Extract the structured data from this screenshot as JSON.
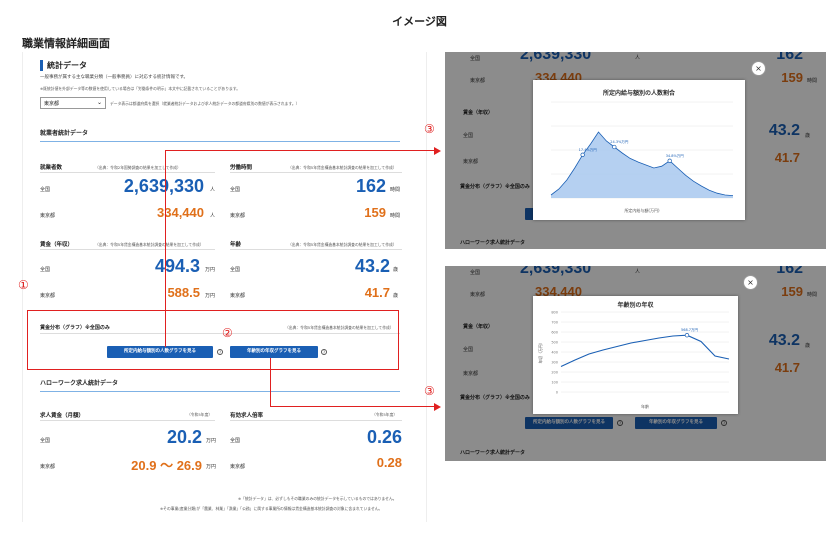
{
  "doc_title": "イメージ図",
  "page_heading": "職業情報詳細画面",
  "main": {
    "section_title": "統計データ",
    "intro": "一般事務が属する主な職業分類（一般事務員）に対応する統計情報です。",
    "note": "※既統計値を外部データ等の数値を使用している場合は「労働条件の明示」本文中に記載されていることがあります。",
    "pref_select": "東京都",
    "pref_note": "データ表示は都道府県を選択（就業者統計データおよび求人統計データの都道府県別の数値が表示されます。）",
    "employment_heading": "就業者統計データ",
    "workers": {
      "label": "就業者数",
      "source": "（出典：令和2年国勢調査の結果を加工して作成）",
      "nation_label": "全国",
      "nation_value": "2,639,330",
      "nation_unit": "人",
      "pref_label": "東京都",
      "pref_value": "334,440",
      "pref_unit": "人"
    },
    "hours": {
      "label": "労働時間",
      "source": "（出典：令和5年賃金構造基本統計調査の結果を加工して作成）",
      "nation_label": "全国",
      "nation_value": "162",
      "nation_unit": "時間",
      "pref_label": "東京都",
      "pref_value": "159",
      "pref_unit": "時間"
    },
    "wage": {
      "label": "賃金（年収）",
      "source": "（出典：令和5年賃金構造基本統計調査の結果を加工して作成）",
      "nation_label": "全国",
      "nation_value": "494.3",
      "nation_unit": "万円",
      "pref_label": "東京都",
      "pref_value": "588.5",
      "pref_unit": "万円"
    },
    "age": {
      "label": "年齢",
      "source": "（出典：令和5年賃金構造基本統計調査の結果を加工して作成）",
      "nation_label": "全国",
      "nation_value": "43.2",
      "nation_unit": "歳",
      "pref_label": "東京都",
      "pref_value": "41.7",
      "pref_unit": "歳"
    },
    "graph_label": "賃金分布（グラフ）※全国のみ",
    "graph_source": "（出典：令和5年賃金構造基本統計調査の結果を加工して作成）",
    "btn_wage_dist": "所定内給与額別の人数グラフを見る",
    "btn_age_wage": "年齢別の年収グラフを見る",
    "help_glyph": "?",
    "hw_heading": "ハローワーク求人統計データ",
    "offer_wage": {
      "label": "求人賃金（月額）",
      "source": "（令和5年度）",
      "nation_label": "全国",
      "nation_value": "20.2",
      "nation_unit": "万円",
      "pref_label": "東京都",
      "pref_value": "20.9 ～ 26.9",
      "pref_unit": "万円"
    },
    "offer_ratio": {
      "label": "有効求人倍率",
      "source": "（令和5年度）",
      "nation_label": "全国",
      "nation_value": "0.26",
      "pref_label": "東京都",
      "pref_value": "0.28"
    },
    "footnote1": "※「統計データ」は、必ずしもその職業のみの統計データを示しているものではありません。",
    "footnote2": "※その事業(産業分類)が「農業、林業」「漁業」「公務」に属する事業所の情報は賃金構造基本統計調査の対象に含まれていません。"
  },
  "markers": {
    "one": "①",
    "two": "②",
    "three": "③"
  },
  "overlay": {
    "bg_workers": "2,639,330",
    "bg_workers_unit": "人",
    "bg_nation": "全国",
    "bg_pref": "東京都",
    "bg_pref_workers": "334,440",
    "bg_hours": "162",
    "bg_hours_unit": "時間",
    "bg_pref_hours": "159",
    "bg_wage_label": "賃金（年収）",
    "bg_age": "43.2",
    "bg_age_unit": "歳",
    "bg_pref_age": "41.7",
    "bg_graph_label": "賃金分布（グラフ）※全国のみ",
    "bg_hw_heading": "ハローワーク求人統計データ",
    "close": "×"
  },
  "chart_data": [
    {
      "type": "area",
      "title": "所定内給与額別の人数割合",
      "xlabel": "所定内給与額(万円)",
      "ylabel": "",
      "series": [
        {
          "values": [
            0.5,
            1.5,
            3,
            5,
            7.2,
            9,
            11,
            9.5,
            8.5,
            7.5,
            6.6,
            6,
            5.5,
            5,
            5.3,
            6.2,
            5,
            3.8,
            2.8,
            2,
            1.3,
            0.8,
            0.5,
            0.4
          ]
        }
      ],
      "ylim": [
        0,
        16
      ],
      "annotations": [
        "17.4%万円",
        "24.3%万円",
        "34.8%万円"
      ]
    },
    {
      "type": "line",
      "title": "年齢別の年収",
      "xlabel": "年齢",
      "ylabel": "年収（万円）",
      "series": [
        {
          "values": [
            255,
            320,
            380,
            420,
            455,
            490,
            515,
            540,
            560,
            568,
            505,
            360,
            330
          ]
        }
      ],
      "ylim": [
        0,
        800
      ],
      "annotations": [
        "568.7万円"
      ]
    }
  ]
}
